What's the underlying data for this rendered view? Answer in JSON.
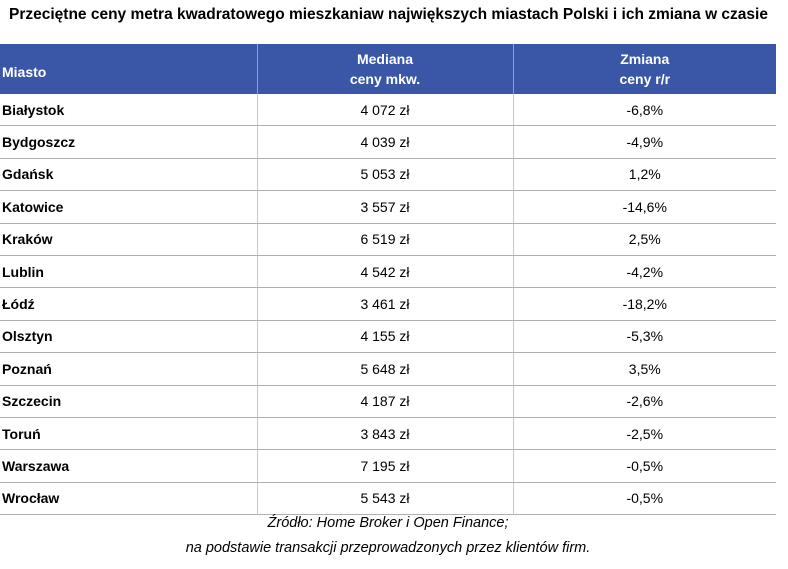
{
  "title": "Przeciętne ceny metra kwadratowego mieszkaniaw największych miastach Polski i ich zmiana w czasie",
  "table": {
    "headers": {
      "city": "Miasto",
      "median_line1": "Mediana",
      "median_line2": "ceny mkw.",
      "change_line1": "Zmiana",
      "change_line2": "ceny r/r"
    },
    "rows": [
      {
        "city": "Białystok",
        "price": "4 072 zł",
        "change": "-6,8%"
      },
      {
        "city": "Bydgoszcz",
        "price": "4 039 zł",
        "change": "-4,9%"
      },
      {
        "city": "Gdańsk",
        "price": "5 053 zł",
        "change": "1,2%"
      },
      {
        "city": "Katowice",
        "price": "3 557 zł",
        "change": "-14,6%"
      },
      {
        "city": "Kraków",
        "price": "6 519 zł",
        "change": "2,5%"
      },
      {
        "city": "Lublin",
        "price": "4 542 zł",
        "change": "-4,2%"
      },
      {
        "city": "Łódź",
        "price": "3 461 zł",
        "change": "-18,2%"
      },
      {
        "city": "Olsztyn",
        "price": "4 155 zł",
        "change": "-5,3%"
      },
      {
        "city": "Poznań",
        "price": "5 648 zł",
        "change": "3,5%"
      },
      {
        "city": "Szczecin",
        "price": "4 187 zł",
        "change": "-2,6%"
      },
      {
        "city": "Toruń",
        "price": "3 843 zł",
        "change": "-2,5%"
      },
      {
        "city": "Warszawa",
        "price": "7 195 zł",
        "change": "-0,5%"
      },
      {
        "city": "Wrocław",
        "price": "5 543 zł",
        "change": "-0,5%"
      }
    ]
  },
  "source": {
    "line1": "Źródło: Home Broker i Open Finance;",
    "line2": "na podstawie transakcji przeprowadzonych przez klientów firm."
  },
  "colors": {
    "header_bg": "#3a56a6",
    "header_text": "#ffffff"
  }
}
